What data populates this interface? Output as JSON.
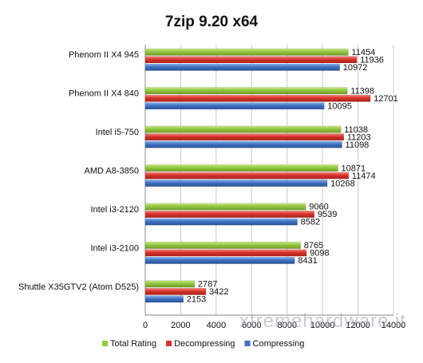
{
  "chart_data": {
    "type": "bar",
    "orientation": "horizontal",
    "title": "7zip 9.20 x64",
    "categories": [
      "Phenom II X4 945",
      "Phenom II X4 840",
      "Intel i5-750",
      "AMD A8-3850",
      "Intel i3-2120",
      "Intel i3-2100",
      "Shuttle X35GTV2 (Atom D525)"
    ],
    "series": [
      {
        "name": "Total Rating",
        "color": "#92c83e",
        "values": [
          11454,
          11398,
          11038,
          10871,
          9060,
          8765,
          2787
        ]
      },
      {
        "name": "Decompressing",
        "color": "#d9342b",
        "values": [
          11936,
          12701,
          11203,
          11474,
          9539,
          9098,
          3422
        ]
      },
      {
        "name": "Compressing",
        "color": "#3f72c4",
        "values": [
          10972,
          10095,
          11098,
          10268,
          8582,
          8431,
          2153
        ]
      }
    ],
    "xlim": [
      0,
      14000
    ],
    "xticks": [
      "0",
      "2000",
      "4000",
      "6000",
      "8000",
      "10000",
      "12000",
      "14000"
    ],
    "grid": true,
    "legend": "bottom",
    "watermark": "xtremehardware.it"
  }
}
